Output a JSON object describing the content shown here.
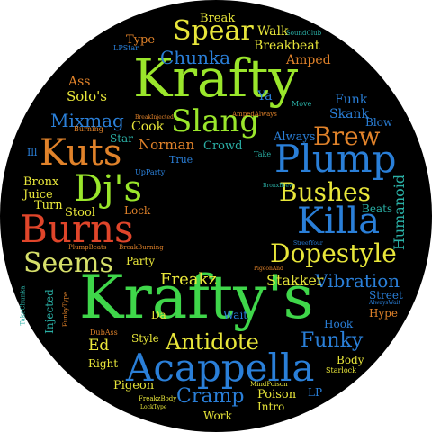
{
  "colors": {
    "background": "#ffffff",
    "disc": "#000000",
    "lime": "#9ae62b",
    "green": "#3fd64a",
    "yellow": "#e8e63a",
    "blue": "#2a7fd8",
    "teal": "#2ab0a6",
    "orange": "#e0822a",
    "red": "#e0452a",
    "pale": "#d6df6a"
  },
  "words": [
    "Krafty",
    "Krafty's",
    "Acappella",
    "Plump",
    "Killa",
    "Burns",
    "Kuts",
    "Dj's",
    "Slang",
    "Spear",
    "Brew",
    "Bushes",
    "Dopestyle",
    "Seems",
    "Antidote",
    "Funky",
    "Chunka",
    "Mixmag",
    "Cramp",
    "Vibration",
    "Freakz",
    "Stakker",
    "Humanoid",
    "Break",
    "Walk",
    "Breakbeat",
    "Amped",
    "Type",
    "Ass",
    "Solo's",
    "Funk",
    "Skank",
    "Blow",
    "Crowd",
    "Always",
    "Norman",
    "Cook",
    "Star",
    "True",
    "Bronx",
    "Juice",
    "Turn",
    "Stool",
    "Lock",
    "Beats",
    "Party",
    "Street",
    "Hype",
    "Hook",
    "Wait",
    "Da",
    "Style",
    "Ed",
    "Right",
    "Body",
    "Injected",
    "Pigeon",
    "Poison",
    "Intro",
    "Work",
    "LP",
    "Ya",
    "Move",
    "Take",
    "Burning",
    "Ill",
    "UpParty",
    "DubAss",
    "StreetYour",
    "PigeonAnd",
    "PlumpBeats",
    "BreakBurning",
    "TakeChunka",
    "FunkyType",
    "AlwaysWait",
    "Starlock",
    "FreakzBody",
    "MindPoison",
    "LockType",
    "SoundClub",
    "LPStar",
    "AmpedAlways",
    "BreakInjected",
    "BronxBrew"
  ]
}
